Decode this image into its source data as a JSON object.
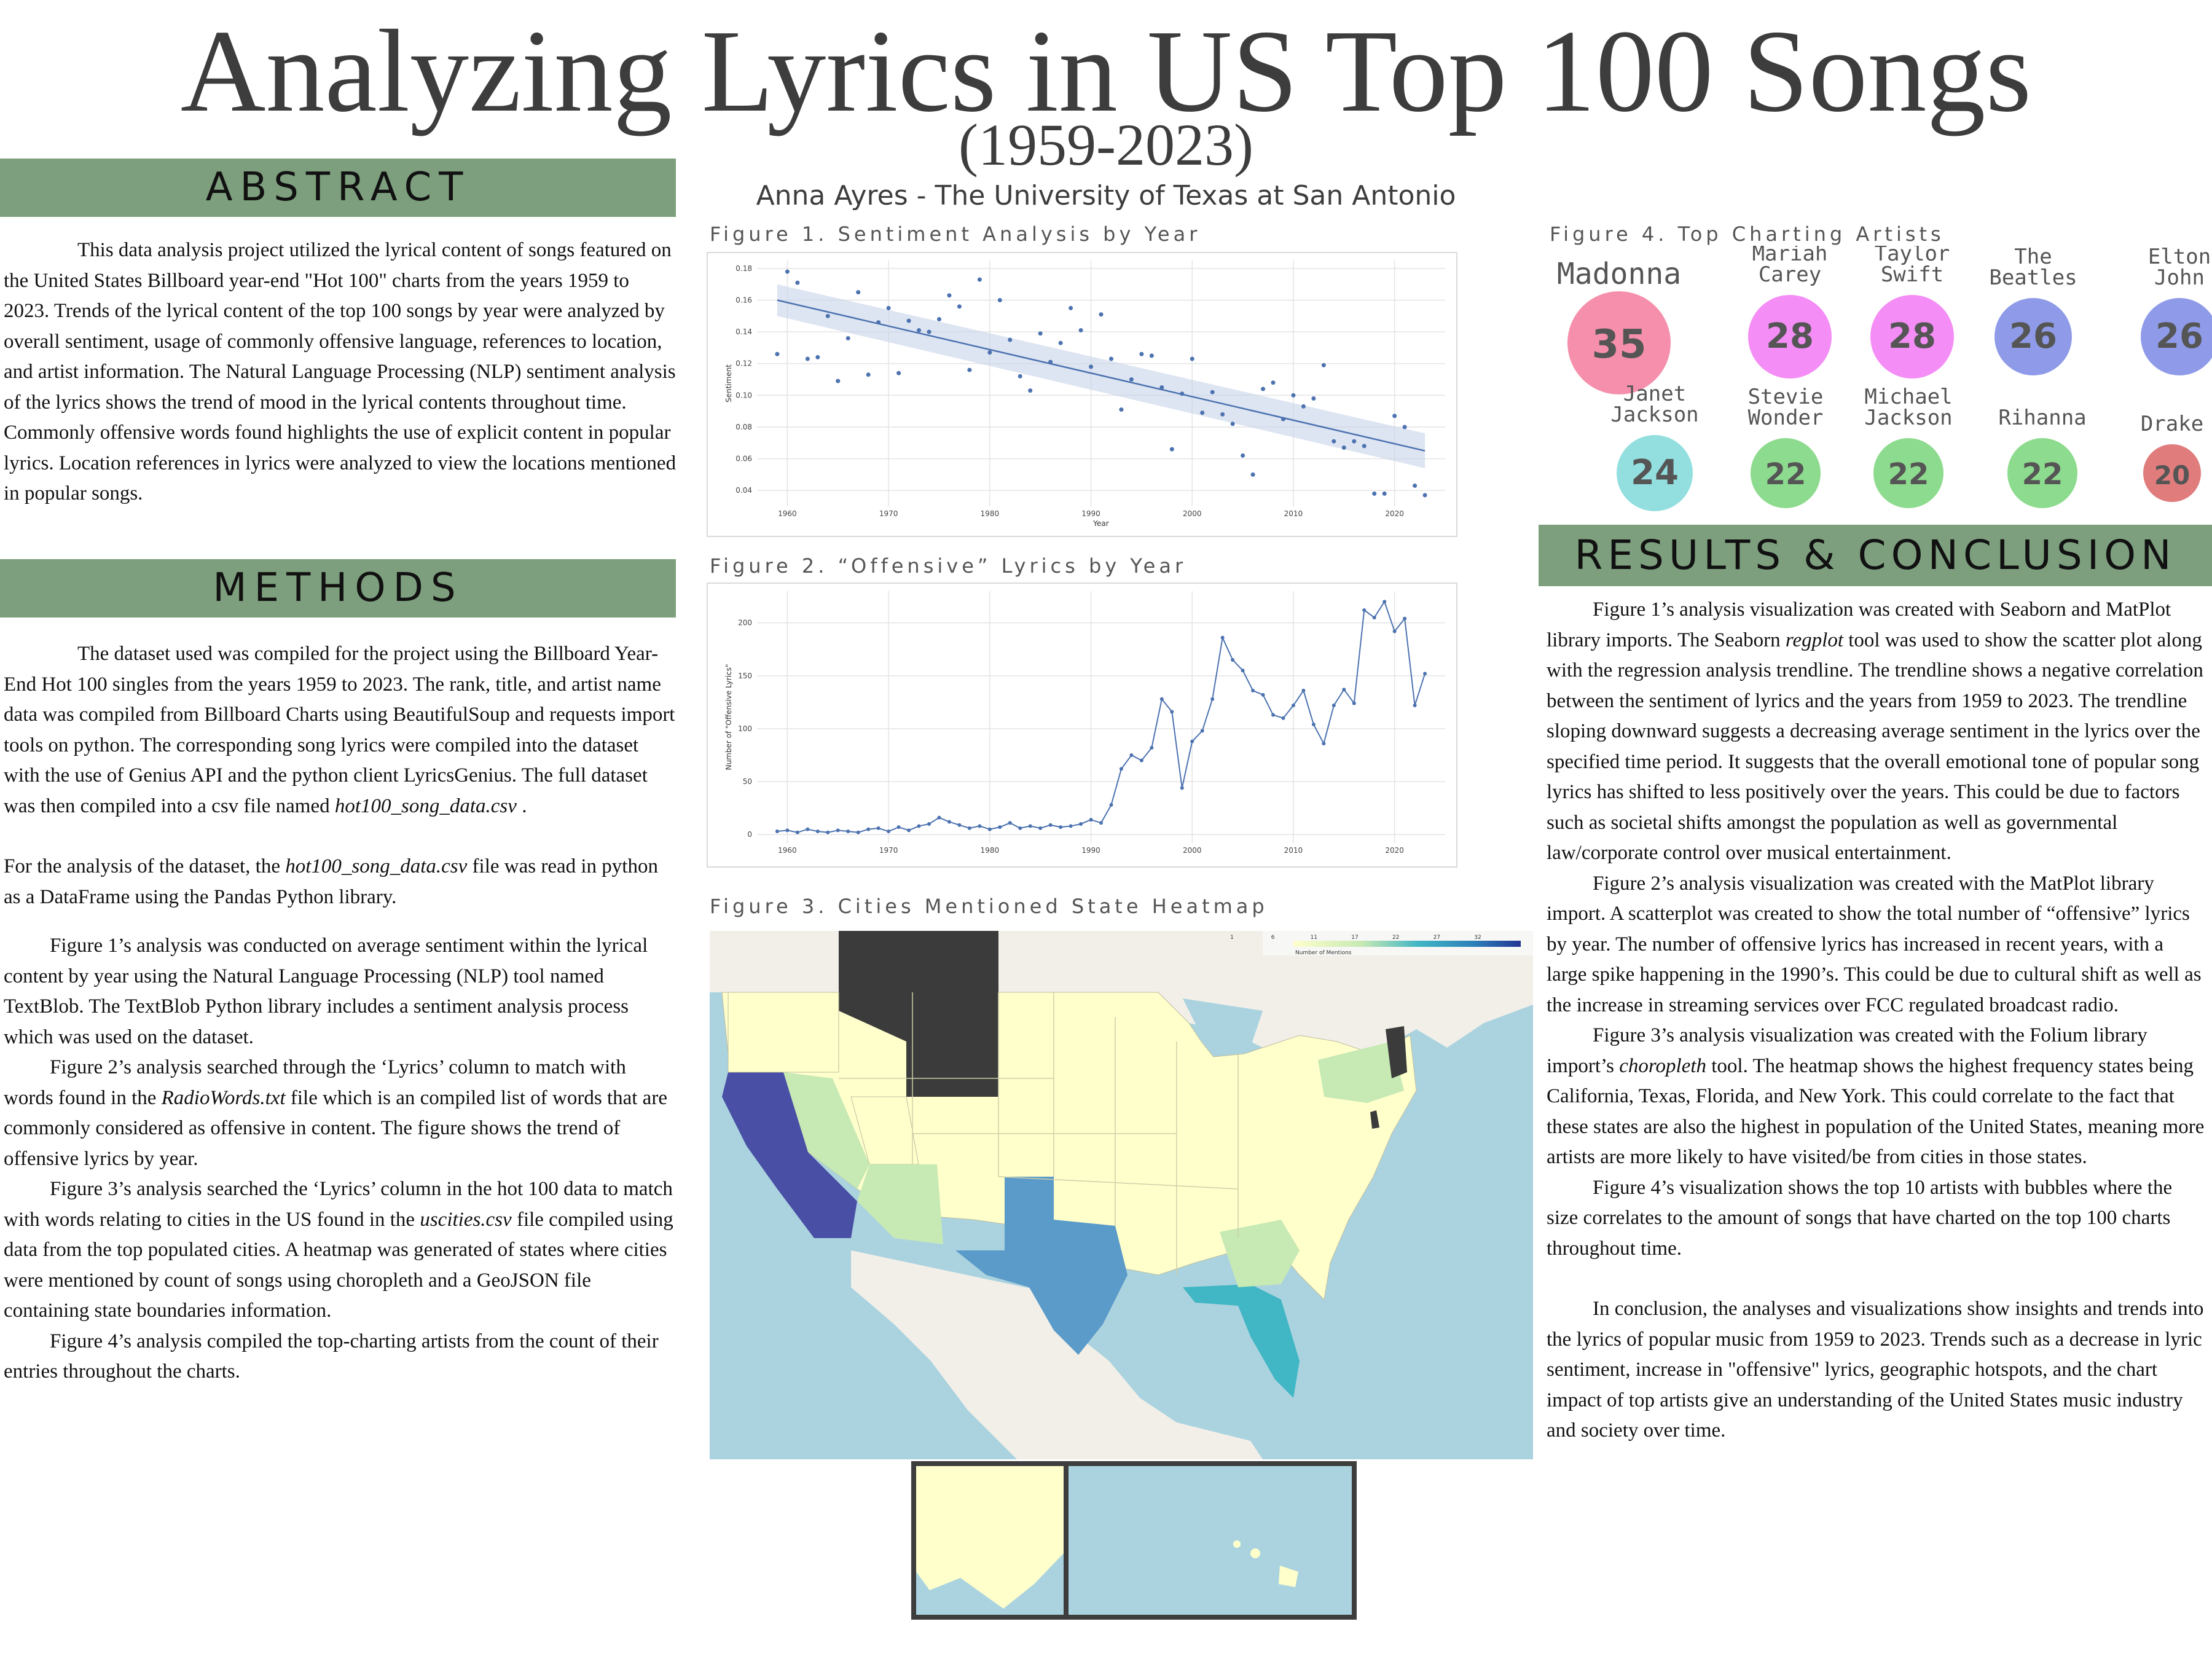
{
  "header": {
    "title": "Analyzing Lyrics in US Top 100 Songs",
    "years": "(1959-2023)",
    "author": "Anna Ayres - The University of Texas at San Antonio"
  },
  "abstract": {
    "heading": "ABSTRACT",
    "text": "This data analysis project utilized the lyrical content of songs featured on the United States Billboard year-end \"Hot 100\" charts from the years 1959 to 2023. Trends of the lyrical content of the top 100 songs by year were analyzed by overall sentiment, usage of commonly offensive language, references to location, and artist information. The Natural Language Processing (NLP) sentiment analysis of the lyrics shows the trend of mood in the lyrical contents throughout time. Commonly offensive words found highlights the use of explicit content in popular lyrics. Location references in lyrics were analyzed to view the locations mentioned in popular songs."
  },
  "methods": {
    "heading": "METHODS",
    "p1_before": "The dataset used was compiled for the project using the Billboard Year-End Hot 100 singles from the years 1959 to 2023.  The rank, title, and artist name data was compiled from Billboard Charts using BeautifulSoup and requests import tools on python.    The corresponding song lyrics were compiled into the dataset with the use of Genius API and the python client LyricsGenius. The full dataset was then compiled into a csv file named ",
    "p1_file": "hot100_song_data.csv",
    "p1_after": " .",
    "p2_before": "For the analysis of the dataset, the ",
    "p2_file": "hot100_song_data.csv",
    "p2_after": " file was read in python as a DataFrame using the Pandas Python library.",
    "p3": "Figure 1’s  analysis was conducted on average sentiment within the lyrical content by year using the Natural Language Processing (NLP) tool named TextBlob.  The TextBlob Python library includes a sentiment analysis process which was used on the dataset.",
    "p4_before": "Figure 2’s  analysis searched through the ‘Lyrics’ column to match with words found in the ",
    "p4_file": "RadioWords.txt",
    "p4_after": " file which is an compiled list of words that are commonly considered as offensive in content. The figure shows the trend of offensive lyrics by year.",
    "p5_before": "Figure 3’s analysis searched the ‘Lyrics’ column in the hot 100 data to match with words relating to cities in the US found in the ",
    "p5_file": "uscities.csv",
    "p5_after": " file compiled using data from the top populated cities.  A heatmap was generated of states where cities were mentioned by count of songs using choropleth and a GeoJSON file containing state boundaries information.",
    "p6": "Figure 4’s analysis compiled the top-charting artists from the count of their entries throughout the charts."
  },
  "figures": {
    "fig1_caption": "Figure 1. Sentiment Analysis by Year",
    "fig2_caption": "Figure 2. “Offensive” Lyrics by Year",
    "fig3_caption": "Figure 3. Cities Mentioned State Heatmap",
    "fig4_caption": "Figure 4. Top Charting Artists",
    "fig3_legend_label": "Number of Mentions",
    "fig3_legend_ticks": [
      "1",
      "6",
      "11",
      "17",
      "22",
      "27",
      "32"
    ]
  },
  "results": {
    "heading": "RESULTS & CONCLUSION",
    "p1_before": "Figure 1’s analysis visualization was created with Seaborn and MatPlot library imports. The Seaborn ",
    "p1_em": "regplot",
    "p1_after": " tool was used to show the scatter plot along with the regression analysis trendline. The trendline shows a negative correlation between the sentiment of lyrics and the years from 1959 to 2023. The trendline sloping downward suggests a decreasing average sentiment in the lyrics over the specified time period. It suggests that the overall emotional tone of popular song lyrics has shifted to less positively over the years. This could be due to factors such as societal shifts amongst the population as well as governmental law/corporate control over musical entertainment.",
    "p2": "Figure 2’s analysis visualization was created with the MatPlot library import. A scatterplot was created to show the total number of “offensive” lyrics by year. The number of offensive lyrics has increased in recent years, with a large spike happening in the 1990’s. This could be due to cultural shift as well as the increase in streaming services over FCC regulated broadcast radio.",
    "p3_before": "Figure 3’s analysis visualization was created with the Folium library import’s ",
    "p3_em": "choropleth",
    "p3_after": " tool. The heatmap shows the highest frequency states being California, Texas, Florida, and New York. This could correlate to the fact that these states are also the highest in population of the United States, meaning more artists are more likely to have visited/be from cities in those states.",
    "p4": "Figure 4’s visualization shows the top 10 artists with bubbles where the size correlates to the amount of songs that have charted on the top 100 charts throughout time.",
    "p5": "In conclusion, the analyses and visualizations show insights and trends into the lyrics of popular music from 1959 to 2023. Trends such as a decrease in lyric sentiment, increase in \"offensive\" lyrics, geographic hotspots, and the chart impact of top artists give an understanding of the United States music industry and society over time."
  },
  "chart_data": [
    {
      "type": "scatter",
      "title": "",
      "xlabel": "Year",
      "ylabel": "Sentiment",
      "xlim": [
        1957,
        2025
      ],
      "ylim": [
        0.03,
        0.185
      ],
      "xticks": [
        1960,
        1970,
        1980,
        1990,
        2000,
        2010,
        2020
      ],
      "yticks": [
        0.04,
        0.06,
        0.08,
        0.1,
        0.12,
        0.14,
        0.16,
        0.18
      ],
      "ytick_labels": [
        "0.04",
        "0.06",
        "0.08",
        "0.10",
        "0.12",
        "0.14",
        "0.16",
        "0.18"
      ],
      "x": [
        1959,
        1960,
        1961,
        1962,
        1963,
        1964,
        1965,
        1966,
        1967,
        1968,
        1969,
        1970,
        1971,
        1972,
        1973,
        1974,
        1975,
        1976,
        1977,
        1978,
        1979,
        1980,
        1981,
        1982,
        1983,
        1984,
        1985,
        1986,
        1987,
        1988,
        1989,
        1990,
        1991,
        1992,
        1993,
        1994,
        1995,
        1996,
        1997,
        1998,
        1999,
        2000,
        2001,
        2002,
        2003,
        2004,
        2005,
        2006,
        2007,
        2008,
        2009,
        2010,
        2011,
        2012,
        2013,
        2014,
        2015,
        2016,
        2017,
        2018,
        2019,
        2020,
        2021,
        2022,
        2023
      ],
      "y": [
        0.126,
        0.178,
        0.171,
        0.123,
        0.124,
        0.15,
        0.109,
        0.136,
        0.165,
        0.113,
        0.146,
        0.155,
        0.114,
        0.147,
        0.141,
        0.14,
        0.148,
        0.163,
        0.156,
        0.116,
        0.173,
        0.127,
        0.16,
        0.135,
        0.112,
        0.103,
        0.139,
        0.121,
        0.133,
        0.155,
        0.141,
        0.118,
        0.151,
        0.123,
        0.091,
        0.11,
        0.126,
        0.125,
        0.105,
        0.066,
        0.101,
        0.123,
        0.089,
        0.102,
        0.088,
        0.082,
        0.062,
        0.05,
        0.104,
        0.108,
        0.085,
        0.1,
        0.093,
        0.098,
        0.119,
        0.071,
        0.067,
        0.071,
        0.068,
        0.038,
        0.038,
        0.087,
        0.08,
        0.043,
        0.037
      ],
      "trend": {
        "x": [
          1959,
          2023
        ],
        "y": [
          0.16,
          0.065
        ]
      }
    },
    {
      "type": "line",
      "title": "",
      "xlabel": "",
      "ylabel": "Number of \"Offensive Lyrics\"",
      "xlim": [
        1957,
        2025
      ],
      "ylim": [
        -8,
        230
      ],
      "xticks": [
        1960,
        1970,
        1980,
        1990,
        2000,
        2010,
        2020
      ],
      "yticks": [
        0,
        50,
        100,
        150,
        200
      ],
      "x": [
        1959,
        1960,
        1961,
        1962,
        1963,
        1964,
        1965,
        1966,
        1967,
        1968,
        1969,
        1970,
        1971,
        1972,
        1973,
        1974,
        1975,
        1976,
        1977,
        1978,
        1979,
        1980,
        1981,
        1982,
        1983,
        1984,
        1985,
        1986,
        1987,
        1988,
        1989,
        1990,
        1991,
        1992,
        1993,
        1994,
        1995,
        1996,
        1997,
        1998,
        1999,
        2000,
        2001,
        2002,
        2003,
        2004,
        2005,
        2006,
        2007,
        2008,
        2009,
        2010,
        2011,
        2012,
        2013,
        2014,
        2015,
        2016,
        2017,
        2018,
        2019,
        2020,
        2021,
        2022,
        2023
      ],
      "y": [
        3,
        4,
        2,
        5,
        3,
        2,
        4,
        3,
        2,
        5,
        6,
        3,
        7,
        4,
        8,
        10,
        16,
        12,
        9,
        6,
        8,
        5,
        7,
        11,
        6,
        8,
        6,
        9,
        7,
        8,
        10,
        14,
        11,
        28,
        62,
        75,
        70,
        82,
        128,
        116,
        44,
        88,
        98,
        128,
        186,
        165,
        155,
        136,
        132,
        113,
        110,
        122,
        136,
        104,
        86,
        122,
        137,
        124,
        212,
        205,
        220,
        192,
        204,
        122,
        152
      ]
    },
    {
      "type": "bubble",
      "title": "",
      "categories": [
        "Madonna",
        "Mariah Carey",
        "Taylor Swift",
        "The Beatles",
        "Elton John",
        "Janet Jackson",
        "Stevie Wonder",
        "Michael Jackson",
        "Rihanna",
        "Drake"
      ],
      "values": [
        35,
        28,
        28,
        26,
        26,
        24,
        22,
        22,
        22,
        20
      ],
      "colors": [
        "#f58fab",
        "#f48df5",
        "#f48df5",
        "#8f9be8",
        "#8f9be8",
        "#93dfe0",
        "#8ddb8e",
        "#8ddb8e",
        "#8ddb8e",
        "#e07c7c"
      ]
    }
  ],
  "map": {
    "water_color": "#abd3df",
    "land_color": "#f2efe9",
    "state_colors": {
      "low": "#ffffcc",
      "mid": "#c7e9b4",
      "midhigh": "#41b6c4",
      "high": "#2c7fb8",
      "top": "#4a4fa6",
      "max": "#3b3b3b"
    }
  }
}
